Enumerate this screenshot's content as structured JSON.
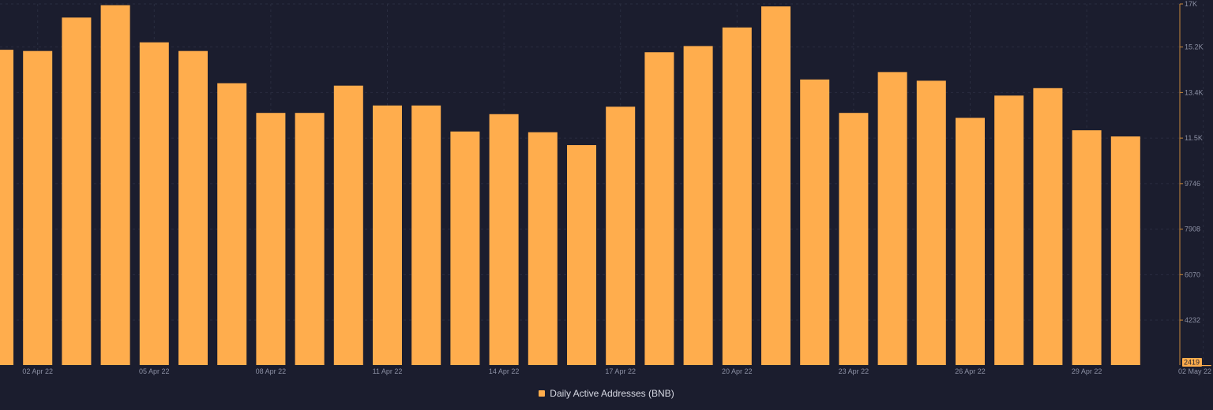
{
  "colors": {
    "background": "#1b1d2e",
    "bar": "#ffad4d",
    "grid": "#2a2d40",
    "axis": "#c8893c",
    "tick_text": "#8b8fa3",
    "legend_text": "#d7d9e3",
    "last_value_bg": "#ffad4d",
    "last_value_text": "#1b1d2e"
  },
  "chart_data": {
    "type": "bar",
    "title": "",
    "xlabel": "",
    "ylabel": "",
    "categories": [
      "01 Apr 22",
      "02 Apr 22",
      "03 Apr 22",
      "04 Apr 22",
      "05 Apr 22",
      "06 Apr 22",
      "07 Apr 22",
      "08 Apr 22",
      "09 Apr 22",
      "10 Apr 22",
      "11 Apr 22",
      "12 Apr 22",
      "13 Apr 22",
      "14 Apr 22",
      "15 Apr 22",
      "16 Apr 22",
      "17 Apr 22",
      "18 Apr 22",
      "19 Apr 22",
      "20 Apr 22",
      "21 Apr 22",
      "22 Apr 22",
      "23 Apr 22",
      "24 Apr 22",
      "25 Apr 22",
      "26 Apr 22",
      "27 Apr 22",
      "28 Apr 22",
      "29 Apr 22",
      "30 Apr 22",
      "01 May 22",
      "02 May 22"
    ],
    "x_tick_labels": [
      "02 Apr 22",
      "05 Apr 22",
      "08 Apr 22",
      "11 Apr 22",
      "14 Apr 22",
      "17 Apr 22",
      "20 Apr 22",
      "23 Apr 22",
      "26 Apr 22",
      "29 Apr 22",
      "02 May 22"
    ],
    "series": [
      {
        "name": "Daily Active Addresses (BNB)",
        "values": [
          15150,
          15100,
          16450,
          16950,
          15450,
          15100,
          13800,
          12600,
          12600,
          13700,
          12900,
          12900,
          11850,
          12550,
          11820,
          11300,
          12850,
          15050,
          15300,
          16050,
          16900,
          13950,
          12600,
          14250,
          13900,
          12400,
          13300,
          13600,
          11900,
          11650,
          null,
          2419
        ]
      }
    ],
    "y_tick_labels": [
      "4232",
      "6070",
      "7908",
      "9746",
      "11.5K",
      "13.4K",
      "15.2K",
      "17K"
    ],
    "ylim": [
      2419,
      17000
    ],
    "last_value_label": "2419",
    "grid": true,
    "legend_position": "bottom-center"
  }
}
